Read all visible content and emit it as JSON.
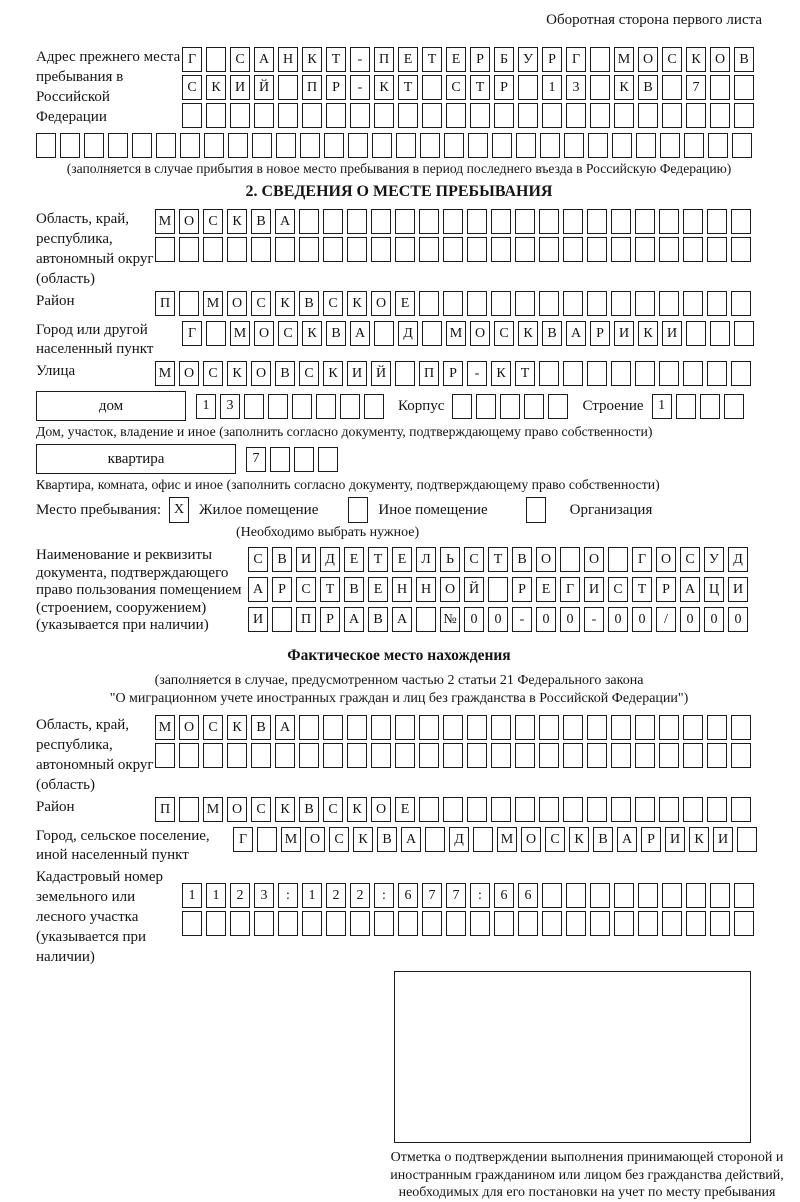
{
  "page": {
    "header_note": "Оборотная сторона первого листа"
  },
  "prev_address": {
    "label": "Адрес прежнего места пребывания в Российской Федерации",
    "row1": "Г САНКТ-ПЕТЕРБУРГ МОСКОВ",
    "row2": "СКИЙ ПР-КТ СТР 13 КВ 7",
    "row3": "",
    "row4": "",
    "note": "(заполняется в случае прибытия в новое место пребывания в период последнего въезда в Российскую Федерацию)"
  },
  "section2": {
    "title": "2. СВЕДЕНИЯ О МЕСТЕ ПРЕБЫВАНИЯ",
    "region": {
      "label": "Область, край, республика, автономный округ (область)",
      "row1": "МОСКВА",
      "row2": ""
    },
    "district": {
      "label": "Район",
      "row1": "П МОСКВСКОЕ"
    },
    "city": {
      "label": "Город или другой населенный пункт",
      "row1": "Г МОСКВА Д МОСКВАРИКИ"
    },
    "street": {
      "label": "Улица",
      "row1": "МОСКОВСКИЙ ПР-КТ"
    },
    "house": {
      "box_label": "дом",
      "value": "13",
      "korpus_label": "Корпус",
      "korpus_value": "",
      "stroenie_label": "Строение",
      "stroenie_value": "1",
      "note": "Дом, участок, владение и иное (заполнить согласно документу, подтверждающему право собственности)"
    },
    "apartment": {
      "box_label": "квартира",
      "value": "7",
      "note": "Квартира, комната, офис и иное (заполнить согласно документу, подтверждающему право собственности)"
    },
    "stay_type": {
      "label": "Место пребывания:",
      "options": [
        {
          "label": "Жилое помещение",
          "checked": "X"
        },
        {
          "label": "Иное помещение",
          "checked": ""
        },
        {
          "label": "Организация",
          "checked": ""
        }
      ],
      "note": "(Необходимо выбрать нужное)"
    },
    "doc": {
      "label": "Наименование и реквизиты документа, подтверждающего право пользования помещением (строением, сооружением) (указывается при наличии)",
      "row1": "СВИДЕТЕЛЬСТВО О ГОСУД",
      "row2": "АРСТВЕННОЙ РЕГИСТРАЦИ",
      "row3": "И ПРАВА №00-00-00/000"
    }
  },
  "actual_location": {
    "title": "Фактическое место нахождения",
    "note1": "(заполняется в случае, предусмотренном частью 2 статьи 21 Федерального закона",
    "note2": "\"О миграционном учете иностранных граждан и лиц без гражданства в Российской Федерации\")",
    "region": {
      "label": "Область, край, республика, автономный округ (область)",
      "row1": "МОСКВА",
      "row2": ""
    },
    "district": {
      "label": "Район",
      "row1": "П МОСКВСКОЕ"
    },
    "city": {
      "label": "Город, сельское поселение, иной населенный пункт",
      "row1": "Г МОСКВА Д МОСКВАРИКИ"
    },
    "cadastral": {
      "label": "Кадастровый номер земельного или лесного участка (указывается при наличии)",
      "row1": "1123:122:677:66",
      "row2": ""
    }
  },
  "stamp": {
    "note": "Отметка о подтверждении выполнения принимающей стороной и иностранным гражданином или лицом без гражданства действий, необходимых для его постановки на учет по месту пребывания"
  }
}
